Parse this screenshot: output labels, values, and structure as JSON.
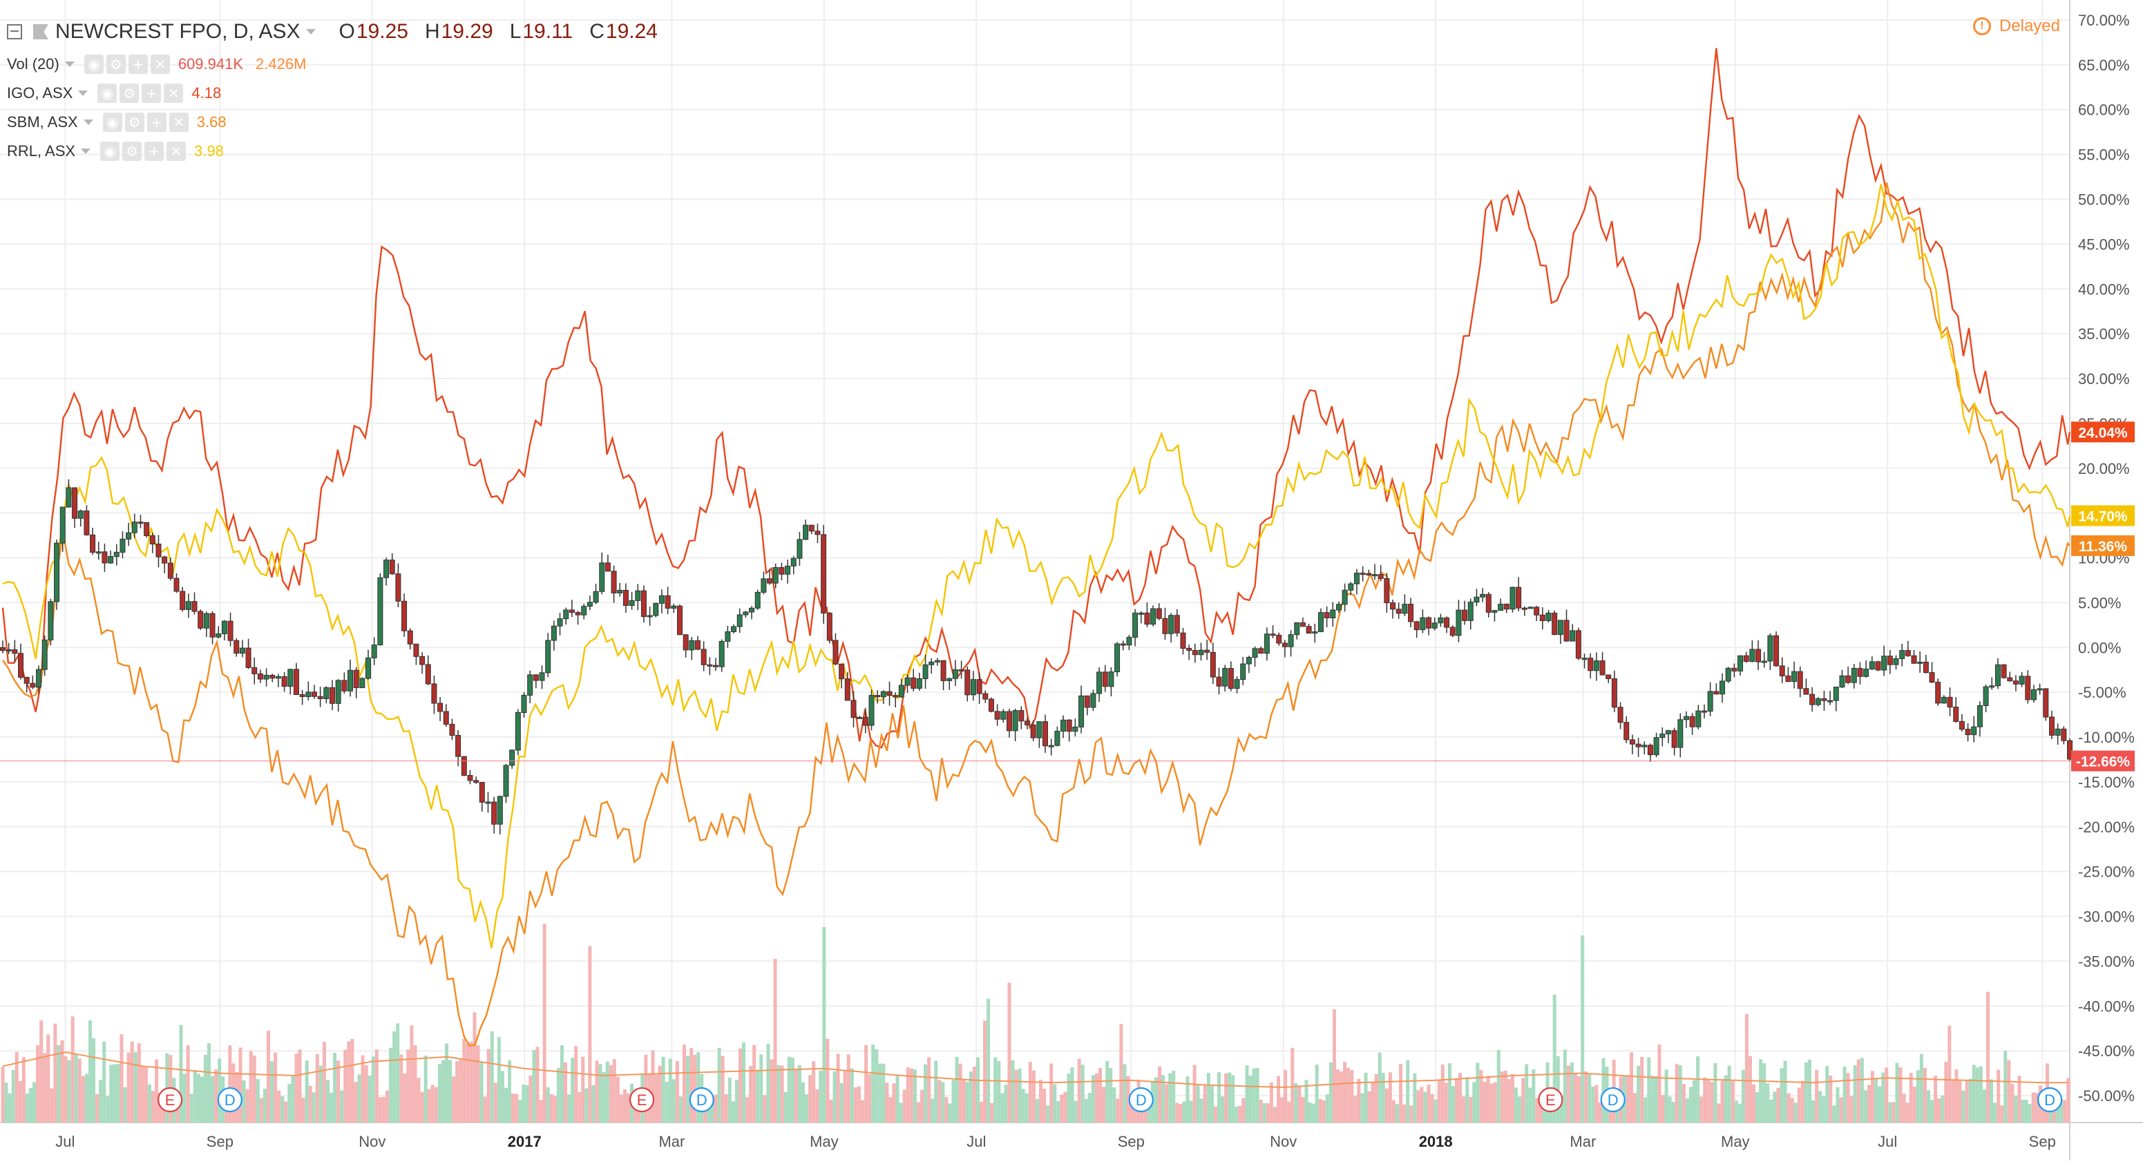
{
  "header": {
    "symbol_title": "NEWCREST FPO, D, ASX",
    "ohlc": [
      {
        "key": "O",
        "value": "19.25"
      },
      {
        "key": "H",
        "value": "19.29"
      },
      {
        "key": "L",
        "value": "19.11"
      },
      {
        "key": "C",
        "value": "19.24"
      }
    ],
    "delayed_label": "Delayed"
  },
  "legend": [
    {
      "label": "Vol (20)",
      "values": [
        "609.941K",
        "2.426M"
      ],
      "value_colors": [
        "#e8544a",
        "#ff8a33"
      ]
    },
    {
      "label": "IGO, ASX",
      "values": [
        "4.18"
      ],
      "value_colors": [
        "#e8481f"
      ]
    },
    {
      "label": "SBM, ASX",
      "values": [
        "3.68"
      ],
      "value_colors": [
        "#f48a1f"
      ]
    },
    {
      "label": "RRL, ASX",
      "values": [
        "3.98"
      ],
      "value_colors": [
        "#f2c600"
      ]
    }
  ],
  "colors": {
    "ncm_up": "#2e7d4f",
    "ncm_down": "#b2302b",
    "igo": "#e8481f",
    "sbm": "#f48a1f",
    "rrl": "#f5c400",
    "vol_up": "#a8dcc0",
    "vol_down": "#f5b5b5",
    "vol_ma": "#f2975a",
    "grid": "#eeeeee",
    "axis_text": "#555555",
    "priceline": "#f08080"
  },
  "chart_data": {
    "type": "line",
    "x_axis": {
      "ticks": [
        "Jul",
        "Sep",
        "Nov",
        "2017",
        "Mar",
        "May",
        "Jul",
        "Sep",
        "Nov",
        "2018",
        "Mar",
        "May",
        "Jul",
        "Sep"
      ],
      "bold_ticks": [
        "2017",
        "2018"
      ],
      "start": "2016-06-06",
      "end": "2018-09-12"
    },
    "y_axis": {
      "unit": "%",
      "range": [
        -53,
        71
      ],
      "ticks": [
        "70.00%",
        "65.00%",
        "60.00%",
        "55.00%",
        "50.00%",
        "45.00%",
        "40.00%",
        "35.00%",
        "30.00%",
        "25.00%",
        "20.00%",
        "15.00%",
        "10.00%",
        "5.00%",
        "0.00%",
        "-5.00%",
        "-10.00%",
        "-15.00%",
        "-20.00%",
        "-25.00%",
        "-30.00%",
        "-35.00%",
        "-40.00%",
        "-45.00%",
        "-50.00%"
      ]
    },
    "last_value_labels": [
      {
        "series": "IGO, ASX",
        "text": "24.04%",
        "value": 24.04,
        "color": "#f04a1a"
      },
      {
        "series": "RRL, ASX",
        "text": "14.70%",
        "value": 14.7,
        "color": "#f5c400"
      },
      {
        "series": "SBM, ASX",
        "text": "11.36%",
        "value": 11.36,
        "color": "#f48a1f"
      },
      {
        "series": "NEWCREST FPO",
        "text": "-12.66%",
        "value": -12.66,
        "color": "#ef5350"
      }
    ],
    "series": [
      {
        "name": "IGO, ASX",
        "type": "line",
        "x": [
          "2016-06-06",
          "2016-06-20",
          "2016-07-01",
          "2016-07-11",
          "2016-07-25",
          "2016-08-08",
          "2016-08-22",
          "2016-09-05",
          "2016-09-19",
          "2016-10-03",
          "2016-10-17",
          "2016-10-31",
          "2016-11-04",
          "2016-11-14",
          "2016-11-28",
          "2016-12-12",
          "2016-12-26",
          "2017-01-09",
          "2017-01-23",
          "2017-02-06",
          "2017-02-20",
          "2017-03-06",
          "2017-03-20",
          "2017-04-03",
          "2017-04-17",
          "2017-05-01",
          "2017-05-15",
          "2017-05-29",
          "2017-06-12",
          "2017-06-26",
          "2017-07-10",
          "2017-07-24",
          "2017-08-07",
          "2017-08-21",
          "2017-09-04",
          "2017-09-18",
          "2017-10-02",
          "2017-10-16",
          "2017-10-30",
          "2017-11-13",
          "2017-11-27",
          "2017-12-11",
          "2017-12-25",
          "2018-01-08",
          "2018-01-22",
          "2018-02-05",
          "2018-02-19",
          "2018-03-05",
          "2018-03-19",
          "2018-04-02",
          "2018-04-16",
          "2018-04-23",
          "2018-05-07",
          "2018-05-21",
          "2018-06-04",
          "2018-06-18",
          "2018-07-02",
          "2018-07-16",
          "2018-07-30",
          "2018-08-13",
          "2018-08-27",
          "2018-09-12"
        ],
        "y": [
          2,
          -6,
          30,
          24,
          26,
          20,
          28,
          14,
          10,
          8,
          20,
          26,
          45,
          38,
          28,
          20,
          16,
          28,
          38,
          20,
          14,
          10,
          22,
          16,
          0,
          6,
          -8,
          -10,
          2,
          -2,
          -4,
          -7,
          2,
          8,
          6,
          14,
          2,
          4,
          20,
          28,
          22,
          18,
          12,
          28,
          48,
          50,
          38,
          52,
          40,
          34,
          44,
          66,
          48,
          46,
          40,
          58,
          50,
          48,
          36,
          26,
          22,
          24.04
        ]
      },
      {
        "name": "SBM, ASX",
        "type": "line",
        "x": [
          "2016-06-06",
          "2016-06-20",
          "2016-07-01",
          "2016-07-15",
          "2016-08-01",
          "2016-08-15",
          "2016-09-01",
          "2016-09-15",
          "2016-10-01",
          "2016-10-15",
          "2016-11-01",
          "2016-11-10",
          "2016-11-20",
          "2016-12-01",
          "2016-12-10",
          "2016-12-20",
          "2017-01-01",
          "2017-01-15",
          "2017-02-01",
          "2017-02-15",
          "2017-03-01",
          "2017-03-15",
          "2017-04-01",
          "2017-04-15",
          "2017-05-01",
          "2017-05-15",
          "2017-06-01",
          "2017-06-15",
          "2017-07-01",
          "2017-07-15",
          "2017-08-01",
          "2017-08-15",
          "2017-09-01",
          "2017-09-15",
          "2017-10-01",
          "2017-10-15",
          "2017-11-01",
          "2017-11-15",
          "2017-12-01",
          "2017-12-15",
          "2018-01-01",
          "2018-01-15",
          "2018-02-01",
          "2018-02-15",
          "2018-03-01",
          "2018-03-15",
          "2018-04-01",
          "2018-04-15",
          "2018-05-01",
          "2018-05-15",
          "2018-06-01",
          "2018-06-15",
          "2018-07-01",
          "2018-07-15",
          "2018-08-01",
          "2018-08-15",
          "2018-09-01",
          "2018-09-12"
        ],
        "y": [
          0,
          -8,
          12,
          4,
          -5,
          -12,
          0,
          -10,
          -15,
          -18,
          -22,
          -30,
          -32,
          -35,
          -46,
          -38,
          -30,
          -25,
          -18,
          -22,
          -12,
          -22,
          -18,
          -28,
          -10,
          -14,
          -8,
          -15,
          -12,
          -14,
          -20,
          -12,
          -12,
          -14,
          -22,
          -10,
          -6,
          -2,
          6,
          8,
          12,
          18,
          24,
          22,
          26,
          25,
          32,
          30,
          34,
          40,
          40,
          45,
          50,
          44,
          28,
          20,
          12,
          11.36
        ]
      },
      {
        "name": "RRL, ASX",
        "type": "line",
        "x": [
          "2016-06-06",
          "2016-06-20",
          "2016-07-01",
          "2016-07-15",
          "2016-08-01",
          "2016-08-15",
          "2016-09-01",
          "2016-09-15",
          "2016-10-01",
          "2016-10-15",
          "2016-11-01",
          "2016-11-15",
          "2016-12-01",
          "2016-12-10",
          "2016-12-20",
          "2017-01-01",
          "2017-01-15",
          "2017-02-01",
          "2017-02-15",
          "2017-03-01",
          "2017-03-15",
          "2017-04-01",
          "2017-04-15",
          "2017-05-01",
          "2017-05-15",
          "2017-06-01",
          "2017-06-15",
          "2017-07-01",
          "2017-07-15",
          "2017-08-01",
          "2017-08-15",
          "2017-09-01",
          "2017-09-15",
          "2017-10-01",
          "2017-10-15",
          "2017-11-01",
          "2017-11-15",
          "2017-12-01",
          "2017-12-15",
          "2018-01-01",
          "2018-01-15",
          "2018-02-01",
          "2018-02-15",
          "2018-03-01",
          "2018-03-15",
          "2018-04-01",
          "2018-04-15",
          "2018-05-01",
          "2018-05-15",
          "2018-06-01",
          "2018-06-15",
          "2018-07-01",
          "2018-07-15",
          "2018-08-01",
          "2018-08-15",
          "2018-09-01",
          "2018-09-12"
        ],
        "y": [
          8,
          0,
          16,
          20,
          12,
          10,
          14,
          8,
          12,
          4,
          -5,
          -10,
          -20,
          -28,
          -33,
          -10,
          -6,
          0,
          -2,
          -4,
          -8,
          -3,
          0,
          -2,
          -4,
          -6,
          4,
          10,
          14,
          6,
          8,
          18,
          24,
          12,
          10,
          16,
          22,
          20,
          18,
          14,
          26,
          18,
          22,
          20,
          32,
          34,
          36,
          40,
          42,
          38,
          46,
          50,
          44,
          26,
          22,
          16,
          14.7
        ]
      },
      {
        "name": "NEWCREST FPO",
        "type": "candlestick",
        "x": [
          "2016-06-06",
          "2016-06-20",
          "2016-07-01",
          "2016-07-15",
          "2016-08-01",
          "2016-08-15",
          "2016-09-01",
          "2016-09-15",
          "2016-10-01",
          "2016-10-15",
          "2016-11-01",
          "2016-11-05",
          "2016-11-15",
          "2016-12-01",
          "2016-12-10",
          "2016-12-20",
          "2017-01-01",
          "2017-01-15",
          "2017-02-01",
          "2017-02-15",
          "2017-03-01",
          "2017-03-15",
          "2017-04-01",
          "2017-04-15",
          "2017-04-28",
          "2017-05-01",
          "2017-05-15",
          "2017-06-01",
          "2017-06-15",
          "2017-07-01",
          "2017-07-15",
          "2017-08-01",
          "2017-08-15",
          "2017-09-01",
          "2017-09-10",
          "2017-09-25",
          "2017-10-10",
          "2017-10-25",
          "2017-11-10",
          "2017-11-25",
          "2017-12-05",
          "2017-12-20",
          "2018-01-05",
          "2018-01-20",
          "2018-02-05",
          "2018-02-20",
          "2018-03-01",
          "2018-03-08",
          "2018-03-20",
          "2018-04-01",
          "2018-04-15",
          "2018-05-01",
          "2018-05-15",
          "2018-06-01",
          "2018-06-15",
          "2018-07-01",
          "2018-07-15",
          "2018-08-01",
          "2018-08-15",
          "2018-09-01",
          "2018-09-12"
        ],
        "y": [
          0,
          -4,
          18,
          10,
          14,
          5,
          2,
          -2,
          -4,
          -5,
          -2,
          12,
          0,
          -8,
          -15,
          -20,
          -5,
          2,
          8,
          5,
          4,
          -3,
          5,
          10,
          14,
          2,
          -8,
          -4,
          -2,
          -5,
          -8,
          -10,
          -6,
          2,
          4,
          0,
          -4,
          0,
          2,
          6,
          8,
          4,
          2,
          5,
          6,
          2,
          -1,
          -2,
          -10,
          -11,
          -8,
          -2,
          0,
          -6,
          -4,
          -1,
          -2,
          -10,
          -2,
          -6,
          -12.66
        ]
      },
      {
        "name": "Vol (20)",
        "type": "volume_bars",
        "x": [
          "2016-06-06",
          "2016-07-01",
          "2016-08-01",
          "2016-09-01",
          "2016-10-01",
          "2016-11-01",
          "2016-12-01",
          "2017-01-01",
          "2017-02-01",
          "2017-03-01",
          "2017-04-01",
          "2017-05-01",
          "2017-06-01",
          "2017-07-01",
          "2017-08-01",
          "2017-09-01",
          "2017-10-01",
          "2017-11-01",
          "2017-12-01",
          "2018-01-01",
          "2018-02-01",
          "2018-03-01",
          "2018-04-01",
          "2018-05-01",
          "2018-06-01",
          "2018-07-01",
          "2018-08-01",
          "2018-09-01"
        ],
        "y": [
          2.4,
          3.0,
          2.4,
          2.1,
          2.0,
          2.6,
          2.8,
          2.3,
          2.0,
          2.1,
          2.2,
          2.3,
          2.0,
          1.8,
          1.7,
          1.8,
          1.6,
          1.5,
          1.7,
          1.8,
          2.0,
          2.1,
          1.9,
          1.8,
          1.7,
          1.9,
          1.8,
          1.7
        ],
        "unit": "M"
      }
    ],
    "markers": [
      {
        "letter": "E",
        "date": "2016-08-12",
        "kind": "earnings"
      },
      {
        "letter": "D",
        "date": "2016-09-05",
        "kind": "dividend"
      },
      {
        "letter": "E",
        "date": "2017-02-17",
        "kind": "earnings"
      },
      {
        "letter": "D",
        "date": "2017-03-13",
        "kind": "dividend"
      },
      {
        "letter": "D",
        "date": "2017-09-05",
        "kind": "dividend"
      },
      {
        "letter": "E",
        "date": "2018-02-16",
        "kind": "earnings"
      },
      {
        "letter": "D",
        "date": "2018-03-13",
        "kind": "dividend"
      },
      {
        "letter": "D",
        "date": "2018-09-04",
        "kind": "dividend"
      }
    ],
    "grid": true,
    "legend_position": "top-left"
  }
}
